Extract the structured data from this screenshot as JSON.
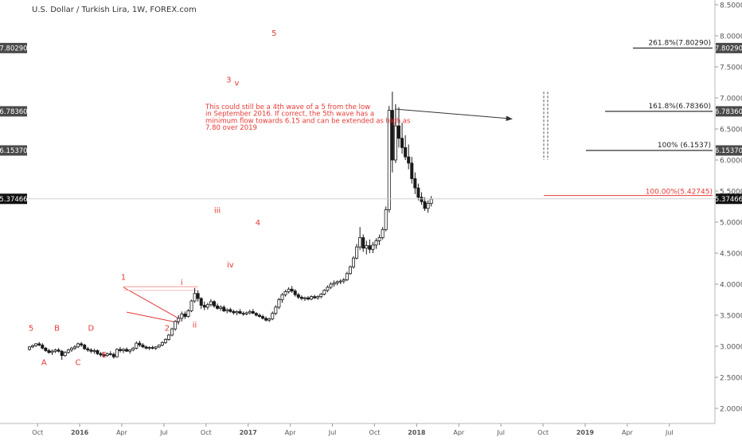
{
  "chart_data": {
    "type": "candlestick",
    "title": "U.S. Dollar / Turkish Lira, 1W, FOREX.com",
    "ylim": [
      1.85,
      8.55
    ],
    "y_ticks": [
      "2.00000",
      "2.50000",
      "3.00000",
      "3.50000",
      "4.00000",
      "4.50000",
      "5.00000",
      "5.50000",
      "6.00000",
      "6.50000",
      "7.00000",
      "7.50000",
      "8.00000",
      "8.50000"
    ],
    "x_ticks": [
      "Oct",
      "2016",
      "Apr",
      "Jul",
      "Oct",
      "2017",
      "Apr",
      "Jul",
      "Oct",
      "2018",
      "Apr",
      "Jul",
      "Oct",
      "2019",
      "Apr",
      "Jul"
    ],
    "bold_x_ticks": [
      "2016",
      "2017",
      "2018",
      "2019"
    ],
    "price_badges": [
      {
        "value": 7.8029,
        "label": "7.80290",
        "color": "#4a4a4a"
      },
      {
        "value": 6.7836,
        "label": "6.78360",
        "color": "#4a4a4a"
      },
      {
        "value": 6.1537,
        "label": "6.15370",
        "color": "#4a4a4a"
      },
      {
        "value": 5.37466,
        "label": "5.37466",
        "color": "#111111"
      }
    ],
    "fib_levels": [
      {
        "label": "261.8%(7.80290)",
        "value": 7.8029
      },
      {
        "label": "161.8%(6.78360)",
        "value": 6.7836
      },
      {
        "label": "100% (6.1537)",
        "value": 6.1537
      }
    ],
    "ext_level": {
      "label": "100.00%(5.42745)",
      "value": 5.42745
    },
    "current_price": 5.37466,
    "wave_labels": [
      {
        "text": "5",
        "t": 0.5,
        "p": 3.25
      },
      {
        "text": "A",
        "t": 4.5,
        "p": 2.7
      },
      {
        "text": "B",
        "t": 8.5,
        "p": 3.25
      },
      {
        "text": "C",
        "t": 15.0,
        "p": 2.7
      },
      {
        "text": "D",
        "t": 19.0,
        "p": 3.25
      },
      {
        "text": "E",
        "t": 23.0,
        "p": 2.82
      },
      {
        "text": "1",
        "t": 29.0,
        "p": 4.07
      },
      {
        "text": "2",
        "t": 42.5,
        "p": 3.25
      },
      {
        "text": "i",
        "t": 47.0,
        "p": 3.99
      },
      {
        "text": "ii",
        "t": 51.0,
        "p": 3.3
      },
      {
        "text": "iii",
        "t": 58.0,
        "p": 5.15
      },
      {
        "text": "iv",
        "t": 62.0,
        "p": 4.27
      },
      {
        "text": "3",
        "t": 61.5,
        "p": 7.25
      },
      {
        "text": "v",
        "t": 64.0,
        "p": 7.2
      },
      {
        "text": "4",
        "t": 70.5,
        "p": 4.95
      },
      {
        "text": "5",
        "t": 75.5,
        "p": 8.0
      }
    ],
    "annotation": {
      "lines": [
        "This could still be a 4th wave of a 5 from the low",
        "in September 2016. If correct, the 5th wave has a",
        "minimum flow towards 6.15 and can be extended as high as",
        "7.80 over 2019"
      ]
    },
    "triangle": {
      "upper": [
        [
          29.0,
          3.95
        ],
        [
          46.0,
          3.45
        ]
      ],
      "lower": [
        [
          30.0,
          3.55
        ],
        [
          46.0,
          3.38
        ]
      ],
      "resistance": [
        [
          29.0,
          3.96
        ],
        [
          52.0,
          3.96
        ]
      ]
    },
    "candles_weekly_from_2015_09_14": [
      [
        2.95,
        3.0,
        2.93,
        2.99
      ],
      [
        2.99,
        3.03,
        2.97,
        3.01
      ],
      [
        3.01,
        3.05,
        2.99,
        3.04
      ],
      [
        3.04,
        3.07,
        3.0,
        3.02
      ],
      [
        3.02,
        3.05,
        2.95,
        2.97
      ],
      [
        2.97,
        2.99,
        2.91,
        2.93
      ],
      [
        2.93,
        2.96,
        2.88,
        2.9
      ],
      [
        2.9,
        2.95,
        2.86,
        2.92
      ],
      [
        2.92,
        2.96,
        2.89,
        2.94
      ],
      [
        2.94,
        2.97,
        2.9,
        2.92
      ],
      [
        2.92,
        2.94,
        2.78,
        2.85
      ],
      [
        2.85,
        2.92,
        2.83,
        2.9
      ],
      [
        2.9,
        2.96,
        2.88,
        2.94
      ],
      [
        2.94,
        2.99,
        2.91,
        2.97
      ],
      [
        2.97,
        3.02,
        2.94,
        2.99
      ],
      [
        2.99,
        3.06,
        2.97,
        3.04
      ],
      [
        3.04,
        3.07,
        2.99,
        3.02
      ],
      [
        3.02,
        3.04,
        2.94,
        2.96
      ],
      [
        2.96,
        2.99,
        2.91,
        2.94
      ],
      [
        2.94,
        2.97,
        2.89,
        2.92
      ],
      [
        2.92,
        2.96,
        2.88,
        2.93
      ],
      [
        2.93,
        2.95,
        2.86,
        2.88
      ],
      [
        2.88,
        2.91,
        2.83,
        2.86
      ],
      [
        2.86,
        2.89,
        2.82,
        2.85
      ],
      [
        2.85,
        2.9,
        2.83,
        2.88
      ],
      [
        2.88,
        2.92,
        2.85,
        2.87
      ],
      [
        2.87,
        2.9,
        2.8,
        2.83
      ],
      [
        2.83,
        2.97,
        2.82,
        2.95
      ],
      [
        2.95,
        2.99,
        2.9,
        2.93
      ],
      [
        2.93,
        2.97,
        2.89,
        2.95
      ],
      [
        2.95,
        2.98,
        2.91,
        2.92
      ],
      [
        2.92,
        2.95,
        2.88,
        2.94
      ],
      [
        2.94,
        2.99,
        2.92,
        2.97
      ],
      [
        2.97,
        3.08,
        2.95,
        3.05
      ],
      [
        3.05,
        3.09,
        2.99,
        3.02
      ],
      [
        3.02,
        3.05,
        2.97,
        2.99
      ],
      [
        2.99,
        3.01,
        2.95,
        2.97
      ],
      [
        2.97,
        3.0,
        2.94,
        2.98
      ],
      [
        2.98,
        3.01,
        2.95,
        2.97
      ],
      [
        2.97,
        3.0,
        2.94,
        2.99
      ],
      [
        2.99,
        3.03,
        2.97,
        3.02
      ],
      [
        3.02,
        3.08,
        3.0,
        3.06
      ],
      [
        3.06,
        3.13,
        3.04,
        3.11
      ],
      [
        3.11,
        3.2,
        3.09,
        3.18
      ],
      [
        3.18,
        3.3,
        3.16,
        3.28
      ],
      [
        3.28,
        3.42,
        3.25,
        3.4
      ],
      [
        3.4,
        3.5,
        3.35,
        3.45
      ],
      [
        3.45,
        3.56,
        3.4,
        3.52
      ],
      [
        3.52,
        3.56,
        3.44,
        3.48
      ],
      [
        3.48,
        3.6,
        3.46,
        3.57
      ],
      [
        3.57,
        3.75,
        3.55,
        3.73
      ],
      [
        3.73,
        3.94,
        3.7,
        3.85
      ],
      [
        3.85,
        3.9,
        3.72,
        3.77
      ],
      [
        3.77,
        3.79,
        3.6,
        3.66
      ],
      [
        3.66,
        3.72,
        3.58,
        3.63
      ],
      [
        3.63,
        3.7,
        3.59,
        3.67
      ],
      [
        3.67,
        3.76,
        3.64,
        3.72
      ],
      [
        3.72,
        3.74,
        3.62,
        3.65
      ],
      [
        3.65,
        3.69,
        3.59,
        3.61
      ],
      [
        3.61,
        3.66,
        3.57,
        3.63
      ],
      [
        3.63,
        3.66,
        3.55,
        3.57
      ],
      [
        3.57,
        3.61,
        3.53,
        3.59
      ],
      [
        3.59,
        3.62,
        3.54,
        3.56
      ],
      [
        3.56,
        3.59,
        3.51,
        3.54
      ],
      [
        3.54,
        3.58,
        3.5,
        3.56
      ],
      [
        3.56,
        3.6,
        3.52,
        3.53
      ],
      [
        3.53,
        3.56,
        3.49,
        3.52
      ],
      [
        3.52,
        3.56,
        3.5,
        3.54
      ],
      [
        3.54,
        3.59,
        3.51,
        3.56
      ],
      [
        3.56,
        3.6,
        3.52,
        3.53
      ],
      [
        3.53,
        3.55,
        3.48,
        3.5
      ],
      [
        3.5,
        3.53,
        3.46,
        3.48
      ],
      [
        3.48,
        3.51,
        3.43,
        3.45
      ],
      [
        3.45,
        3.48,
        3.4,
        3.42
      ],
      [
        3.42,
        3.46,
        3.39,
        3.44
      ],
      [
        3.44,
        3.56,
        3.42,
        3.53
      ],
      [
        3.53,
        3.66,
        3.5,
        3.63
      ],
      [
        3.63,
        3.78,
        3.6,
        3.75
      ],
      [
        3.75,
        3.86,
        3.7,
        3.83
      ],
      [
        3.83,
        3.91,
        3.8,
        3.88
      ],
      [
        3.88,
        3.95,
        3.85,
        3.92
      ],
      [
        3.92,
        3.97,
        3.86,
        3.89
      ],
      [
        3.89,
        3.92,
        3.8,
        3.83
      ],
      [
        3.83,
        3.86,
        3.76,
        3.79
      ],
      [
        3.79,
        3.82,
        3.74,
        3.77
      ],
      [
        3.77,
        3.8,
        3.73,
        3.78
      ],
      [
        3.78,
        3.81,
        3.74,
        3.76
      ],
      [
        3.76,
        3.82,
        3.74,
        3.8
      ],
      [
        3.8,
        3.83,
        3.76,
        3.78
      ],
      [
        3.78,
        3.82,
        3.75,
        3.8
      ],
      [
        3.8,
        3.86,
        3.77,
        3.84
      ],
      [
        3.84,
        3.92,
        3.82,
        3.9
      ],
      [
        3.9,
        3.98,
        3.87,
        3.95
      ],
      [
        3.95,
        4.03,
        3.92,
        4.0
      ],
      [
        4.0,
        4.06,
        3.96,
        4.02
      ],
      [
        4.02,
        4.06,
        3.98,
        4.04
      ],
      [
        4.04,
        4.08,
        4.0,
        4.05
      ],
      [
        4.05,
        4.1,
        4.01,
        4.07
      ],
      [
        4.07,
        4.2,
        4.05,
        4.17
      ],
      [
        4.17,
        4.3,
        4.15,
        4.28
      ],
      [
        4.28,
        4.45,
        4.25,
        4.42
      ],
      [
        4.42,
        4.65,
        4.4,
        4.6
      ],
      [
        4.6,
        4.92,
        4.55,
        4.75
      ],
      [
        4.75,
        4.8,
        4.52,
        4.58
      ],
      [
        4.58,
        4.7,
        4.48,
        4.62
      ],
      [
        4.62,
        4.72,
        4.5,
        4.56
      ],
      [
        4.56,
        4.68,
        4.5,
        4.63
      ],
      [
        4.63,
        4.74,
        4.57,
        4.7
      ],
      [
        4.7,
        4.8,
        4.63,
        4.75
      ],
      [
        4.75,
        4.92,
        4.72,
        4.88
      ],
      [
        4.88,
        5.25,
        4.85,
        5.2
      ],
      [
        5.2,
        6.87,
        5.15,
        6.8
      ],
      [
        6.8,
        7.1,
        5.8,
        6.0
      ],
      [
        6.0,
        6.9,
        5.95,
        6.55
      ],
      [
        6.55,
        6.85,
        6.2,
        6.35
      ],
      [
        6.35,
        6.6,
        6.1,
        6.2
      ],
      [
        6.2,
        6.4,
        6.0,
        6.05
      ],
      [
        6.05,
        6.25,
        5.85,
        5.95
      ],
      [
        5.95,
        6.05,
        5.62,
        5.7
      ],
      [
        5.7,
        5.8,
        5.45,
        5.55
      ],
      [
        5.55,
        5.62,
        5.35,
        5.4
      ],
      [
        5.4,
        5.48,
        5.28,
        5.33
      ],
      [
        5.33,
        5.4,
        5.18,
        5.22
      ],
      [
        5.22,
        5.35,
        5.15,
        5.3
      ],
      [
        5.3,
        5.42,
        5.25,
        5.37
      ]
    ]
  }
}
